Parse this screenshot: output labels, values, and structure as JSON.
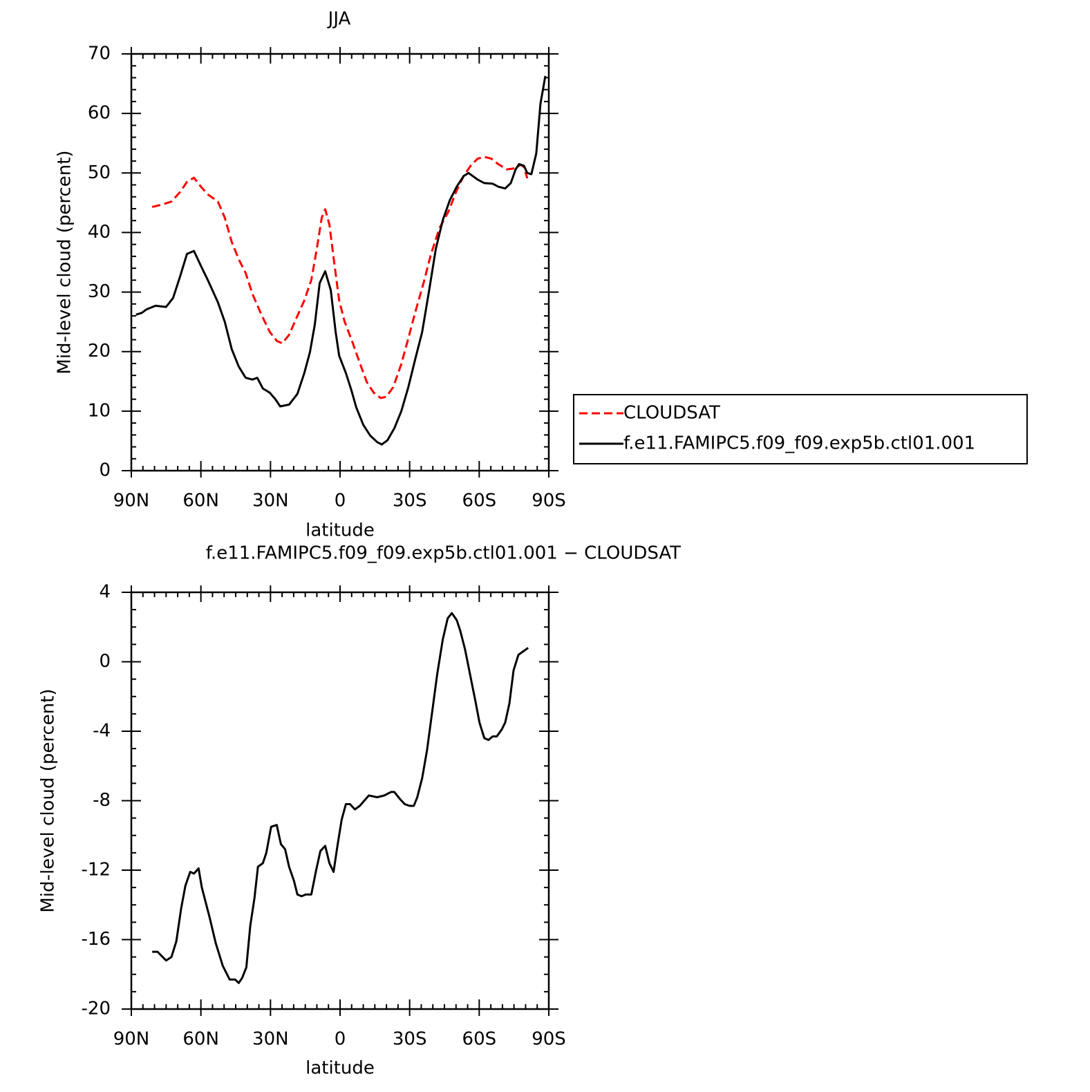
{
  "chart_data": [
    {
      "type": "line",
      "title": "JJA",
      "xlabel": "latitude",
      "ylabel": "Mid-level cloud (percent)",
      "xlim": [
        90,
        -90
      ],
      "xticks": [
        {
          "value": 90,
          "label": "90N"
        },
        {
          "value": 60,
          "label": "60N"
        },
        {
          "value": 30,
          "label": "30N"
        },
        0,
        {
          "value": -30,
          "label": "30S"
        },
        {
          "value": -60,
          "label": "60S"
        },
        {
          "value": -90,
          "label": "90S"
        }
      ],
      "ylim": [
        0,
        70
      ],
      "yticks": [
        0,
        10,
        20,
        30,
        40,
        50,
        60,
        70
      ],
      "legend": "right",
      "series": [
        {
          "name": "CLOUDSAT",
          "color": "#ff0000",
          "dash": true,
          "x": [
            81,
            76.6,
            72.7,
            69,
            66,
            63,
            60,
            57,
            52.7,
            49.7,
            46.7,
            43.7,
            40.7,
            37.8,
            33.9,
            30.3,
            27.3,
            24.9,
            22,
            18.4,
            15.4,
            12.4,
            10,
            7.9,
            6.4,
            4.6,
            2.5,
            0.4,
            -1.9,
            -5.5,
            -8.5,
            -11.5,
            -14.5,
            -17.5,
            -19.9,
            -22.9,
            -26.4,
            -29.4,
            -32.4,
            -36,
            -39,
            -42.8,
            -46.7,
            -50.3,
            -53.3,
            -56.3,
            -59.3,
            -62.2,
            -65.2,
            -68.2,
            -71.8,
            -75.7,
            -77.8,
            -79.3,
            -80.7
          ],
          "values": [
            44.3,
            44.7,
            45.2,
            46.8,
            48.5,
            49.2,
            47.7,
            46.4,
            45.2,
            42.5,
            38.4,
            35.5,
            33.2,
            29.7,
            26.2,
            23.3,
            21.8,
            21.4,
            22.8,
            26,
            28.6,
            32,
            37.3,
            42.5,
            43.9,
            41.3,
            34.9,
            28.6,
            25.1,
            21.4,
            18.1,
            14.9,
            13.1,
            12.2,
            12.4,
            14,
            17.9,
            22.2,
            26.6,
            31.5,
            36.1,
            40.7,
            43.5,
            47.1,
            49.5,
            51.2,
            52.4,
            52.7,
            52.4,
            51.5,
            50.6,
            50.8,
            51.4,
            51,
            49.1
          ]
        },
        {
          "name": "f.e11.FAMIPC5.f09_f09.exp5b.ctl01.001",
          "color": "#000000",
          "dash": false,
          "x": [
            88,
            85.5,
            83.4,
            79.6,
            75,
            72,
            69,
            66,
            63,
            60,
            57,
            52.7,
            49.7,
            46.7,
            43.7,
            40.7,
            37.8,
            35.7,
            33.3,
            30.3,
            27.9,
            25.8,
            22,
            18.4,
            15.4,
            13,
            10.9,
            8.8,
            6.4,
            4,
            1.9,
            0.4,
            -2.5,
            -4.9,
            -7,
            -10,
            -13,
            -16,
            -18,
            -20.4,
            -23.4,
            -26.4,
            -29.4,
            -32.4,
            -35.4,
            -38.4,
            -41.3,
            -44.3,
            -47.3,
            -50.3,
            -53.3,
            -55.4,
            -59.3,
            -62.2,
            -65.8,
            -68.2,
            -71.2,
            -73.6,
            -75.7,
            -77.2,
            -79.3,
            -80.7,
            -82.5,
            -84.6,
            -86.4,
            -88.5
          ],
          "values": [
            26.2,
            26.5,
            27.1,
            27.7,
            27.5,
            29,
            32.6,
            36.4,
            36.9,
            34.4,
            32,
            28.3,
            25,
            20.4,
            17.5,
            15.6,
            15.3,
            15.6,
            13.8,
            13.1,
            12,
            10.8,
            11.1,
            12.9,
            16.4,
            19.9,
            24.5,
            31.5,
            33.5,
            30.3,
            23.3,
            19.3,
            16.4,
            13.5,
            10.6,
            7.7,
            5.9,
            4.8,
            4.4,
            5.1,
            7.1,
            10,
            14,
            18.7,
            23.3,
            30.3,
            37.3,
            42.1,
            45.4,
            47.7,
            49.5,
            50,
            48.9,
            48.3,
            48.2,
            47.7,
            47.4,
            48.3,
            50.6,
            51.5,
            51.2,
            50,
            49.8,
            53.3,
            61.6,
            66.3
          ]
        }
      ]
    },
    {
      "type": "line",
      "title": "f.e11.FAMIPC5.f09_f09.exp5b.ctl01.001 − CLOUDSAT",
      "xlabel": "latitude",
      "ylabel": "Mid-level cloud (percent)",
      "xlim": [
        90,
        -90
      ],
      "xticks": [
        {
          "value": 90,
          "label": "90N"
        },
        {
          "value": 60,
          "label": "60N"
        },
        {
          "value": 30,
          "label": "30N"
        },
        0,
        {
          "value": -30,
          "label": "30S"
        },
        {
          "value": -60,
          "label": "60S"
        },
        {
          "value": -90,
          "label": "90S"
        }
      ],
      "ylim": [
        -20,
        4
      ],
      "yticks": [
        -20,
        -16,
        -12,
        -8,
        -4,
        0,
        4
      ],
      "series": [
        {
          "color": "#000000",
          "dash": false,
          "x": [
            81,
            78.7,
            75,
            72.7,
            70.6,
            68.5,
            66.7,
            64.6,
            63,
            61,
            59.6,
            56.3,
            53.6,
            50.6,
            47.6,
            45.2,
            43.7,
            42.2,
            40.4,
            38.7,
            36.9,
            35.4,
            33.3,
            31.8,
            29.7,
            27.3,
            25.5,
            23.7,
            22,
            19.9,
            18.4,
            16.6,
            14.8,
            12.4,
            10.3,
            8.5,
            6.4,
            4.6,
            2.8,
            1,
            -0.7,
            -2.5,
            -4.3,
            -6.4,
            -8.5,
            -12.4,
            -16,
            -19,
            -22,
            -23.4,
            -25.8,
            -27.9,
            -30,
            -31.8,
            -33.3,
            -35.4,
            -37.5,
            -39.9,
            -41.9,
            -44.3,
            -46.4,
            -48.2,
            -50.3,
            -51.8,
            -53.9,
            -56.3,
            -58.4,
            -60.1,
            -62.2,
            -64,
            -65.8,
            -67.6,
            -69.7,
            -71.2,
            -73,
            -74.8,
            -76.9,
            -79,
            -81.1
          ],
          "values": [
            -16.7,
            -16.7,
            -17.2,
            -17,
            -16.1,
            -14.2,
            -12.9,
            -12.1,
            -12.2,
            -11.9,
            -13,
            -14.7,
            -16.2,
            -17.5,
            -18.3,
            -18.3,
            -18.5,
            -18.2,
            -17.6,
            -15.2,
            -13.6,
            -11.8,
            -11.6,
            -11,
            -9.5,
            -9.4,
            -10.5,
            -10.8,
            -11.8,
            -12.6,
            -13.4,
            -13.5,
            -13.4,
            -13.4,
            -12,
            -10.9,
            -10.6,
            -11.6,
            -12.1,
            -10.5,
            -9.1,
            -8.2,
            -8.2,
            -8.5,
            -8.3,
            -7.7,
            -7.8,
            -7.7,
            -7.5,
            -7.5,
            -7.9,
            -8.2,
            -8.3,
            -8.3,
            -7.8,
            -6.7,
            -5.1,
            -2.7,
            -0.7,
            1.3,
            2.5,
            2.8,
            2.4,
            1.8,
            0.7,
            -0.9,
            -2.3,
            -3.5,
            -4.4,
            -4.5,
            -4.3,
            -4.3,
            -3.9,
            -3.5,
            -2.4,
            -0.5,
            0.4,
            0.6,
            0.8
          ]
        }
      ]
    }
  ]
}
